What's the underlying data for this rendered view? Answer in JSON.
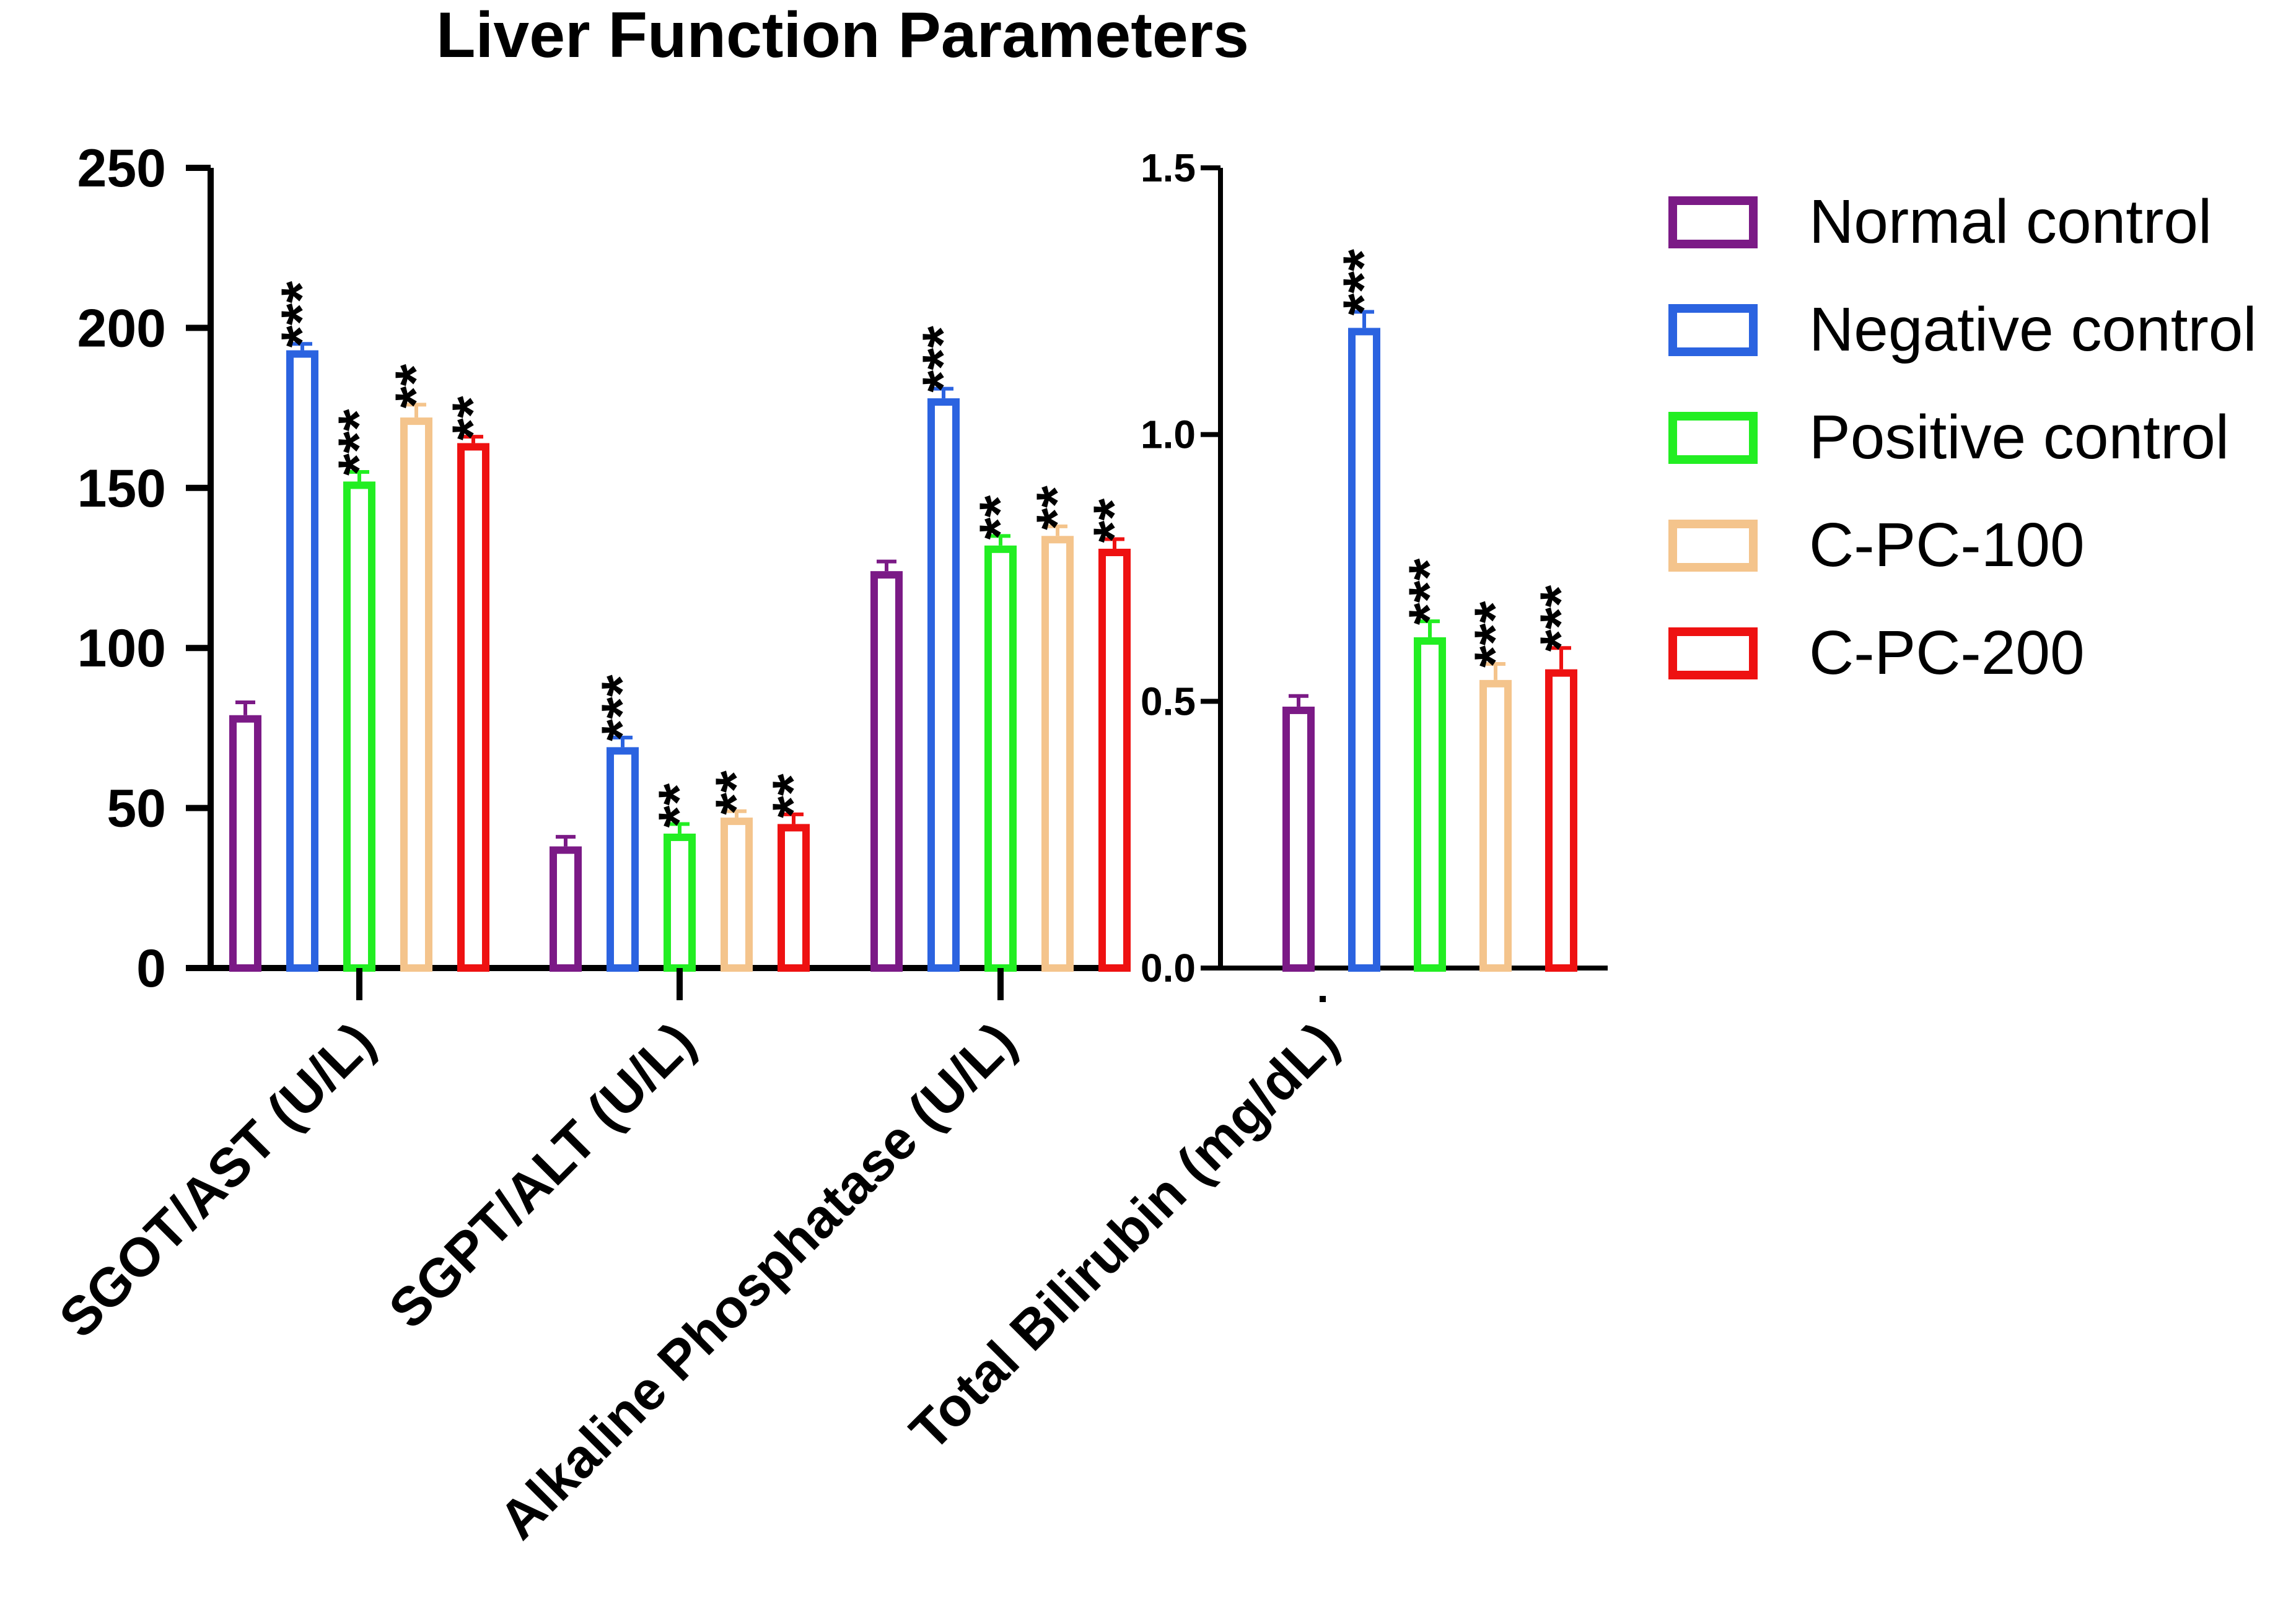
{
  "chart_data": {
    "type": "bar",
    "title": "Liver Function Parameters",
    "categories": [
      "SGOT/AST (U/L)",
      "SGPT/ALT (U/L)",
      "Alkaline Phosphatase (U/L)",
      "Total Bilirubin (mg/dL)"
    ],
    "left_axis": {
      "ylim": [
        0,
        250
      ],
      "ticks": [
        "0",
        "50",
        "100",
        "150",
        "200",
        "250"
      ]
    },
    "right_axis": {
      "ylim": [
        0,
        1.5
      ],
      "ticks": [
        "0.0",
        "0.5",
        "1.0",
        "1.5"
      ]
    },
    "series": [
      {
        "name": "Normal control",
        "color": "#7b1a86",
        "filled": true,
        "values": [
          79,
          38,
          124,
          0.49
        ],
        "errors": [
          4,
          3,
          3,
          0.02
        ],
        "sig": [
          "",
          "",
          "",
          ""
        ]
      },
      {
        "name": "Negative control",
        "color": "#2b63e0",
        "filled": false,
        "values": [
          193,
          69,
          178,
          1.2
        ],
        "errors": [
          2,
          3,
          3,
          0.03
        ],
        "sig": [
          "***",
          "***",
          "***",
          "***"
        ]
      },
      {
        "name": "Positive control",
        "color": "#22ee22",
        "filled": false,
        "values": [
          152,
          42,
          132,
          0.62
        ],
        "errors": [
          3,
          3,
          3,
          0.03
        ],
        "sig": [
          "***",
          "**",
          "**",
          "***"
        ]
      },
      {
        "name": "C-PC-100",
        "color": "#f4c48c",
        "filled": false,
        "values": [
          172,
          47,
          135,
          0.54
        ],
        "errors": [
          4,
          2,
          3,
          0.03
        ],
        "sig": [
          "**",
          "**",
          "**",
          "***"
        ]
      },
      {
        "name": "C-PC-200",
        "color": "#ee1111",
        "filled": false,
        "values": [
          164,
          45,
          131,
          0.56
        ],
        "errors": [
          2,
          3,
          3,
          0.04
        ],
        "sig": [
          "**",
          "**",
          "**",
          "***"
        ]
      }
    ]
  }
}
